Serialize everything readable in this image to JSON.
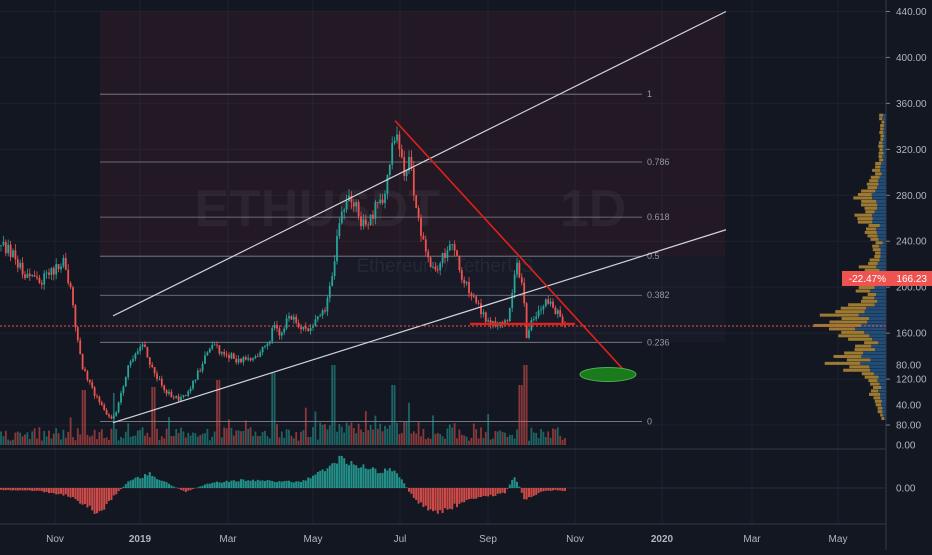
{
  "chart_data": {
    "type": "candlestick",
    "symbol": "ETHUSDT",
    "interval": "1D",
    "subtitle": "Ethereum / TetherUS",
    "price_axis": {
      "ticks": [
        "440.00",
        "400.00",
        "360.00",
        "320.00",
        "280.00",
        "240.00",
        "200.00",
        "160.00",
        "120.00",
        "80.00"
      ],
      "range": [
        60,
        450
      ]
    },
    "volume_axis": {
      "ticks": [
        "80.00",
        "40.00",
        "0.00"
      ]
    },
    "oscillator_axis": {
      "ticks": [
        "0.00"
      ]
    },
    "time_axis": {
      "labels": [
        "Nov",
        "2019",
        "Mar",
        "May",
        "Jul",
        "Sep",
        "Nov",
        "2020",
        "Mar",
        "May"
      ]
    },
    "last_price": "166.23",
    "change_badge": "-22.47%",
    "fibonacci": [
      {
        "level": "1",
        "price": 368
      },
      {
        "level": "0.786",
        "price": 309
      },
      {
        "level": "0.618",
        "price": 261
      },
      {
        "level": "0.5",
        "price": 227
      },
      {
        "level": "0.382",
        "price": 193
      },
      {
        "level": "0.236",
        "price": 152
      },
      {
        "level": "0",
        "price": 83
      }
    ],
    "price_path": [
      [
        0,
        236
      ],
      [
        8,
        232
      ],
      [
        16,
        224
      ],
      [
        24,
        212
      ],
      [
        32,
        208
      ],
      [
        40,
        205
      ],
      [
        48,
        210
      ],
      [
        56,
        218
      ],
      [
        64,
        226
      ],
      [
        70,
        200
      ],
      [
        76,
        162
      ],
      [
        82,
        132
      ],
      [
        88,
        118
      ],
      [
        94,
        108
      ],
      [
        100,
        100
      ],
      [
        106,
        90
      ],
      [
        112,
        85
      ],
      [
        118,
        96
      ],
      [
        124,
        118
      ],
      [
        130,
        135
      ],
      [
        136,
        146
      ],
      [
        142,
        150
      ],
      [
        148,
        140
      ],
      [
        154,
        125
      ],
      [
        160,
        118
      ],
      [
        166,
        110
      ],
      [
        172,
        105
      ],
      [
        178,
        102
      ],
      [
        184,
        104
      ],
      [
        190,
        110
      ],
      [
        196,
        122
      ],
      [
        202,
        132
      ],
      [
        208,
        145
      ],
      [
        214,
        152
      ],
      [
        220,
        142
      ],
      [
        226,
        138
      ],
      [
        232,
        140
      ],
      [
        238,
        136
      ],
      [
        244,
        138
      ],
      [
        250,
        136
      ],
      [
        256,
        140
      ],
      [
        262,
        145
      ],
      [
        268,
        152
      ],
      [
        274,
        165
      ],
      [
        280,
        160
      ],
      [
        286,
        170
      ],
      [
        292,
        175
      ],
      [
        298,
        168
      ],
      [
        304,
        162
      ],
      [
        310,
        165
      ],
      [
        316,
        170
      ],
      [
        322,
        175
      ],
      [
        328,
        190
      ],
      [
        334,
        222
      ],
      [
        340,
        260
      ],
      [
        346,
        272
      ],
      [
        352,
        278
      ],
      [
        356,
        270
      ],
      [
        360,
        260
      ],
      [
        366,
        250
      ],
      [
        372,
        260
      ],
      [
        378,
        275
      ],
      [
        384,
        280
      ],
      [
        388,
        302
      ],
      [
        392,
        320
      ],
      [
        396,
        340
      ],
      [
        400,
        315
      ],
      [
        404,
        300
      ],
      [
        408,
        310
      ],
      [
        412,
        298
      ],
      [
        416,
        272
      ],
      [
        420,
        250
      ],
      [
        424,
        238
      ],
      [
        428,
        226
      ],
      [
        432,
        218
      ],
      [
        436,
        215
      ],
      [
        440,
        222
      ],
      [
        444,
        228
      ],
      [
        448,
        235
      ],
      [
        452,
        238
      ],
      [
        456,
        228
      ],
      [
        460,
        215
      ],
      [
        464,
        205
      ],
      [
        468,
        200
      ],
      [
        472,
        193
      ],
      [
        476,
        188
      ],
      [
        480,
        182
      ],
      [
        484,
        175
      ],
      [
        488,
        170
      ],
      [
        492,
        168
      ],
      [
        496,
        166
      ],
      [
        500,
        170
      ],
      [
        504,
        168
      ],
      [
        508,
        172
      ],
      [
        512,
        190
      ],
      [
        516,
        218
      ],
      [
        520,
        212
      ],
      [
        524,
        185
      ],
      [
        526,
        155
      ],
      [
        530,
        168
      ],
      [
        534,
        170
      ],
      [
        538,
        175
      ],
      [
        542,
        180
      ],
      [
        546,
        190
      ],
      [
        550,
        185
      ],
      [
        554,
        180
      ],
      [
        558,
        178
      ],
      [
        562,
        172
      ],
      [
        566,
        166
      ]
    ],
    "annotations": {
      "channel_upper": [
        [
          113,
          175
        ],
        [
          726,
          440
        ]
      ],
      "channel_lower": [
        [
          113,
          82
        ],
        [
          726,
          250
        ]
      ],
      "trendline_red": [
        [
          395,
          345
        ],
        [
          630,
          122
        ]
      ],
      "support_red": [
        [
          470,
          168
        ],
        [
          575,
          168
        ]
      ],
      "target_ellipse": {
        "x": 608,
        "price": 124
      }
    }
  }
}
